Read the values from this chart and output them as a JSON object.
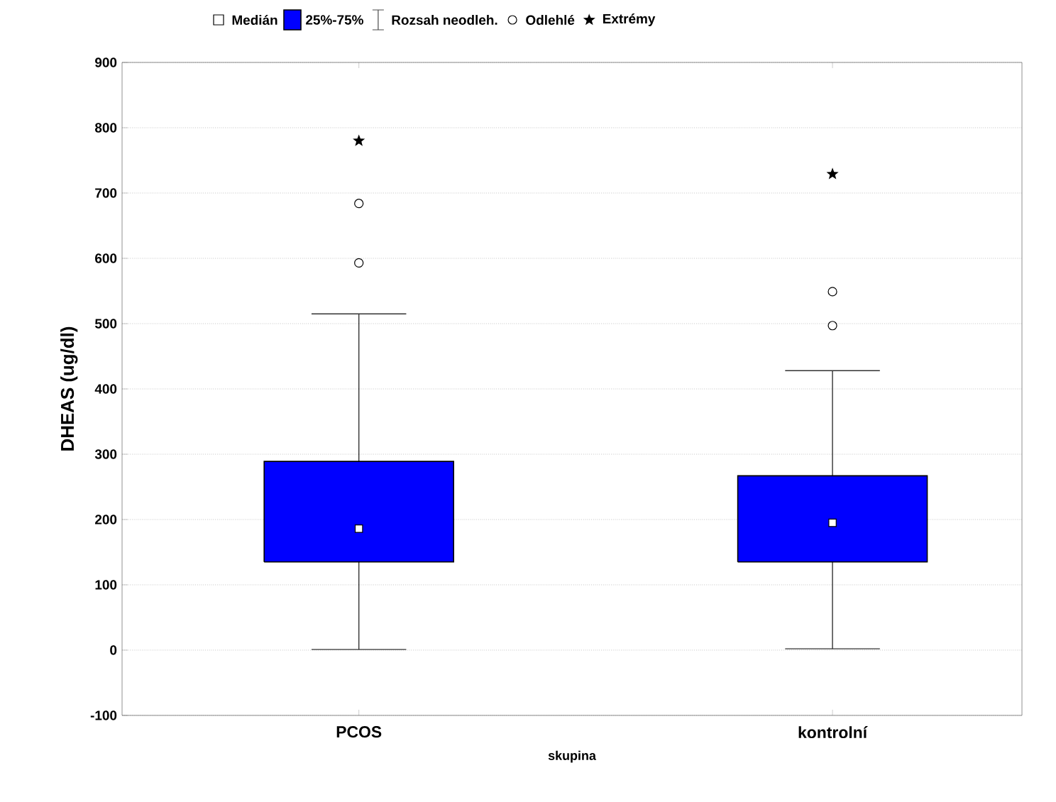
{
  "chart_data": {
    "type": "box",
    "xlabel": "skupina",
    "ylabel": "DHEAS (ug/dl)",
    "categories": [
      "PCOS",
      "kontrolní"
    ],
    "ylim": [
      -100,
      900
    ],
    "yticks": [
      -100,
      0,
      100,
      200,
      300,
      400,
      500,
      600,
      700,
      800,
      900
    ],
    "grid": "y",
    "legend": "top",
    "annotations": [
      "Medián",
      "Rozsah neodleh.",
      "Odlehlé"
    ],
    "series": [
      {
        "type": "box",
        "name": "25%-75%",
        "color": "#0000ff",
        "boxes": [
          {
            "low": 1,
            "q1": 135,
            "median": 186,
            "q3": 289,
            "high": 515,
            "outliers": [
              593,
              684
            ]
          },
          {
            "low": 2,
            "q1": 135,
            "median": 195,
            "q3": 267,
            "high": 428,
            "outliers": [
              497,
              549
            ]
          }
        ]
      },
      {
        "type": "scatter",
        "name": "Extrémy",
        "marker": "star",
        "color": "#000000",
        "x": [
          "PCOS",
          "kontrolní"
        ],
        "values": [
          780,
          729
        ]
      }
    ]
  }
}
